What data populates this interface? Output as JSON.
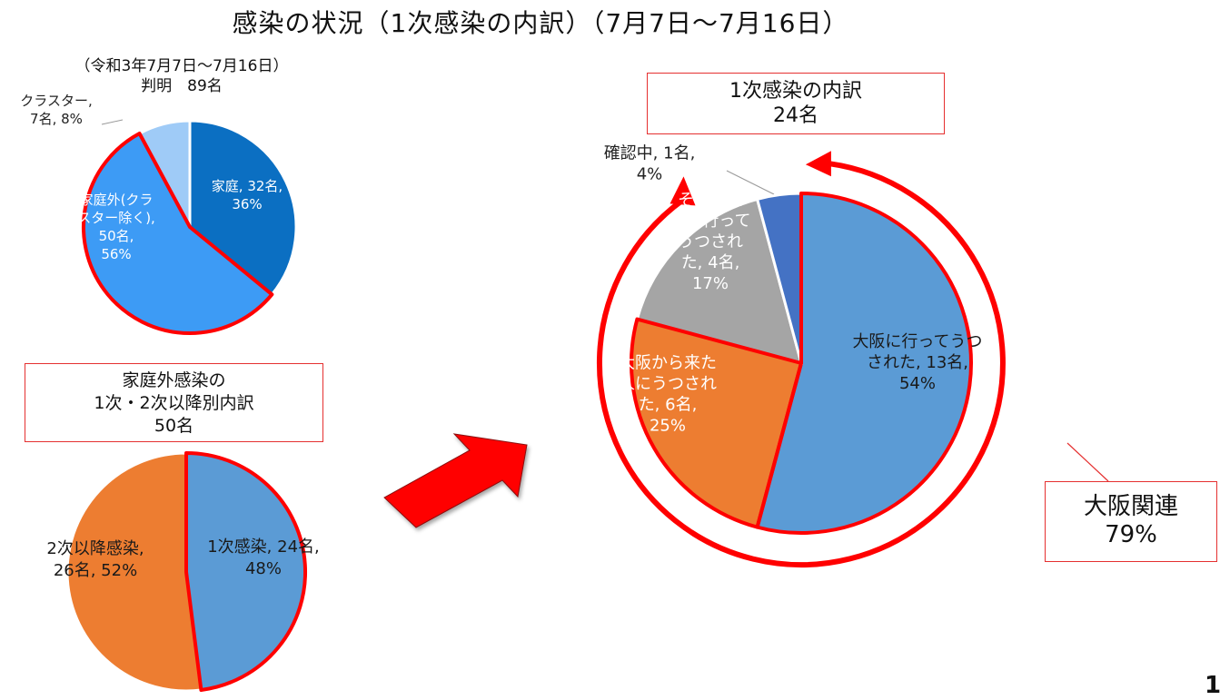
{
  "title": "感染の状況（1次感染の内訳）（7月7日～7月16日）",
  "subtitle": [
    "（令和3年7月7日～7月16日）",
    "判明　89名"
  ],
  "boxes": {
    "secondary": [
      "家庭外感染の",
      "1次・2次以降別内訳",
      "50名"
    ],
    "primary": [
      "1次感染の内訳",
      "24名"
    ],
    "osaka": [
      "大阪関連",
      "79%"
    ]
  },
  "page_number": "1",
  "colors": {
    "accent_red": "#ff0000",
    "box_border": "#e53030"
  },
  "chart_data": [
    {
      "type": "pie",
      "slices": [
        {
          "label": [
            "家庭, 32名,",
            "36%"
          ],
          "value": 32,
          "percent": 36,
          "color": "#0b6fc2"
        },
        {
          "label": [
            "家庭外(クラ",
            "スター除く),",
            "50名,",
            "56%"
          ],
          "value": 50,
          "percent": 56,
          "color": "#3d9bf5",
          "highlighted": true
        },
        {
          "label": [
            "クラスター,",
            "7名, 8%"
          ],
          "value": 7,
          "percent": 8,
          "color": "#9fcbf7"
        }
      ]
    },
    {
      "type": "pie",
      "slices": [
        {
          "label": [
            "1次感染, 24名,",
            "48%"
          ],
          "value": 24,
          "percent": 48,
          "color": "#5b9bd5",
          "highlighted": true
        },
        {
          "label": [
            "2次以降感染,",
            "26名, 52%"
          ],
          "value": 26,
          "percent": 52,
          "color": "#ed7d31"
        }
      ]
    },
    {
      "type": "pie",
      "slices": [
        {
          "label": [
            "大阪に行ってうつ",
            "された, 13名,",
            "54%"
          ],
          "value": 13,
          "percent": 54,
          "color": "#5b9bd5",
          "highlighted": true
        },
        {
          "label": [
            "大阪から来た",
            "人にうつされ",
            "た, 6名,",
            "25%"
          ],
          "value": 6,
          "percent": 25,
          "color": "#ed7d31",
          "highlighted": true
        },
        {
          "label": [
            "その他地",
            "域に行って",
            "うつされ",
            "た, 4名,",
            "17%"
          ],
          "value": 4,
          "percent": 17,
          "color": "#a5a5a5"
        },
        {
          "label": [
            "確認中, 1名,",
            "4%"
          ],
          "value": 1,
          "percent": 4,
          "color": "#4472c4"
        }
      ]
    }
  ]
}
